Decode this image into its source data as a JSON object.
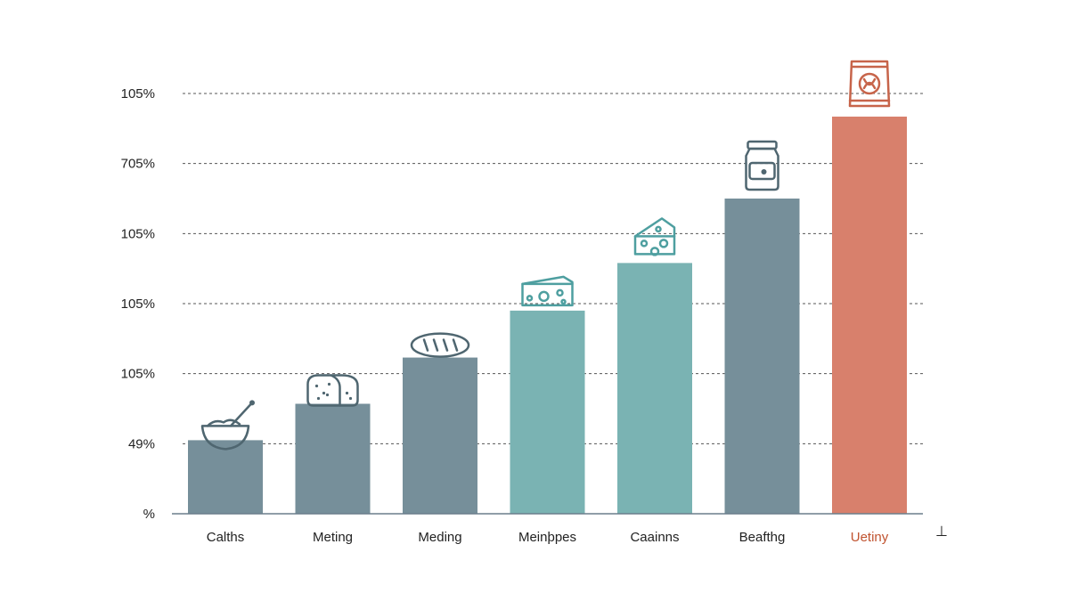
{
  "chart_data": {
    "type": "bar",
    "title": "",
    "xlabel": "",
    "ylabel": "",
    "y_tick_labels": [
      "%",
      "49%",
      "105%",
      "105%",
      "105%",
      "705%",
      "105%"
    ],
    "categories": [
      "Calths",
      "Meting",
      "Meding",
      "Meinþpes",
      "Caainns",
      "Beafthg",
      "Uetiny"
    ],
    "values": [
      1.05,
      1.57,
      2.23,
      2.9,
      3.58,
      4.5,
      5.67
    ],
    "value_note": "values read in gridline units (0 = baseline, 6 = top gridline)",
    "ylim": [
      0,
      6
    ],
    "grid": true,
    "bar_colors": [
      "#768f9a",
      "#768f9a",
      "#768f9a",
      "#7ab3b3",
      "#7ab3b3",
      "#768f9a",
      "#d8806c"
    ],
    "label_colors": [
      "#222222",
      "#222222",
      "#222222",
      "#222222",
      "#222222",
      "#222222",
      "#c0532f"
    ],
    "icons": [
      "bowl-icon",
      "bread-loaf-icon",
      "baguette-icon",
      "cheese-wedge-icon",
      "cheese-block-icon",
      "jar-icon",
      "snack-bag-icon"
    ],
    "icon_colors": [
      "#4f6670",
      "#4f6670",
      "#4f6670",
      "#4e9fa0",
      "#4e9fa0",
      "#4f6670",
      "#c7644a"
    ],
    "corner_glyph": "⊥"
  }
}
